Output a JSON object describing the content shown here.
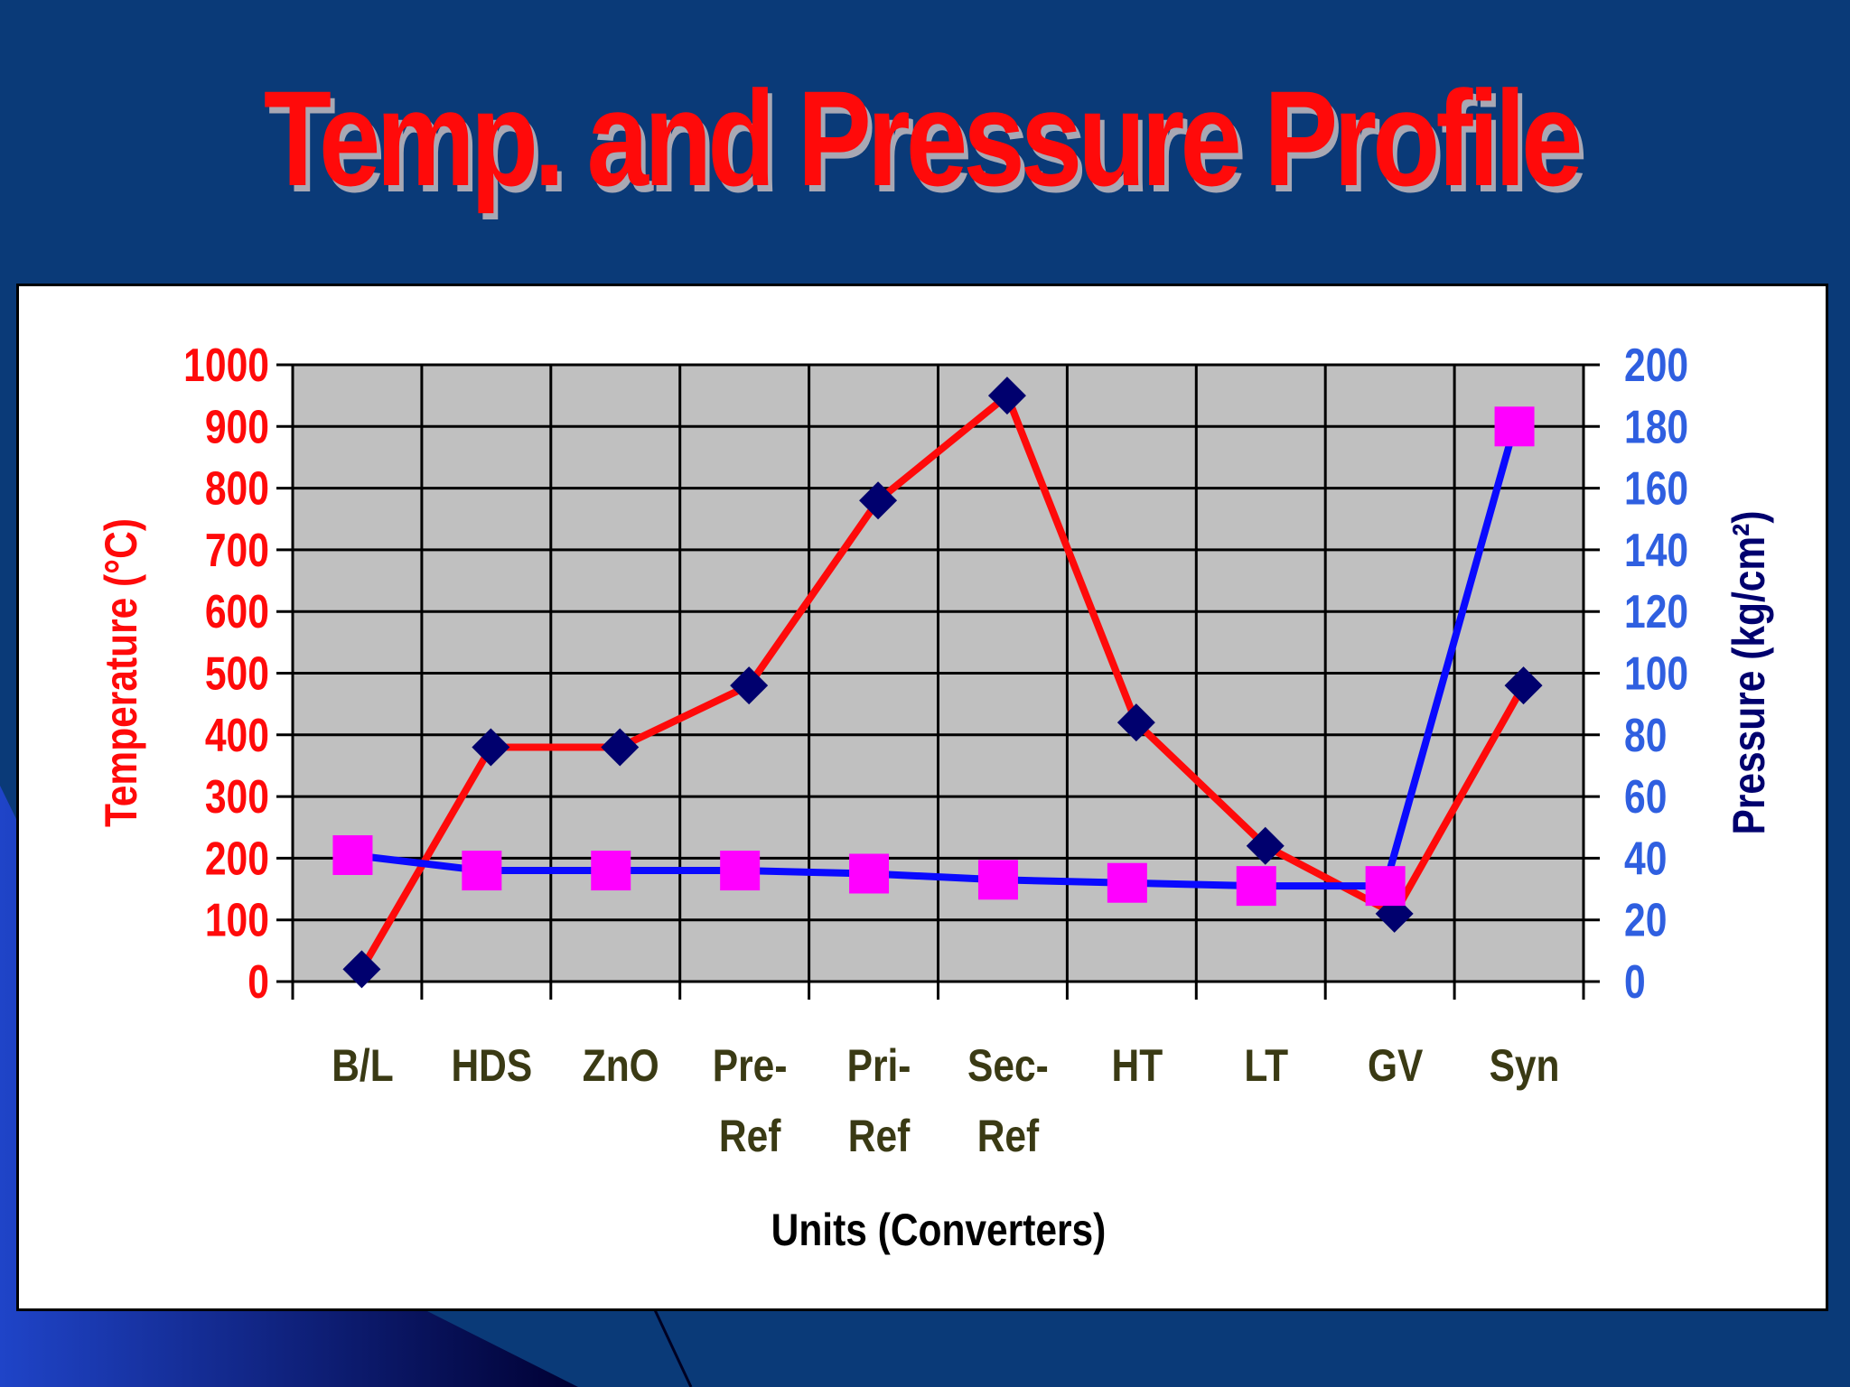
{
  "slide": {
    "title": "Temp. and Pressure Profile"
  },
  "colors": {
    "background": "#0a3a78",
    "title": "#ff0a0a",
    "temperature": "#ff0a0a",
    "pressure": "#0a0aff",
    "temperature_marker": "#00006e",
    "pressure_marker": "#ff00ff",
    "plot_area": "#c0c0c0"
  },
  "chart_data": {
    "type": "line",
    "categories": [
      [
        "B/L"
      ],
      [
        "HDS"
      ],
      [
        "ZnO"
      ],
      [
        "Pre-",
        "Ref"
      ],
      [
        "Pri-",
        "Ref"
      ],
      [
        "Sec-",
        "Ref"
      ],
      [
        "HT"
      ],
      [
        "LT"
      ],
      [
        "GV"
      ],
      [
        "Syn"
      ]
    ],
    "xlabel": "Units (Converters)",
    "ylabel": "Temperature (°C)",
    "y2label": "Pressure (kg/cm²)",
    "ylim": [
      0,
      1000
    ],
    "y2lim": [
      0,
      200
    ],
    "yticks": [
      0,
      100,
      200,
      300,
      400,
      500,
      600,
      700,
      800,
      900,
      1000
    ],
    "y2ticks": [
      0,
      20,
      40,
      60,
      80,
      100,
      120,
      140,
      160,
      180,
      200
    ],
    "grid": true,
    "series": [
      {
        "name": "Temperature",
        "axis": "left",
        "marker": "diamond",
        "values": [
          20,
          380,
          380,
          480,
          780,
          950,
          420,
          220,
          110,
          480
        ]
      },
      {
        "name": "Pressure",
        "axis": "right",
        "marker": "square",
        "values": [
          41,
          36,
          36,
          36,
          35,
          33,
          32,
          31,
          31,
          180
        ]
      }
    ]
  }
}
